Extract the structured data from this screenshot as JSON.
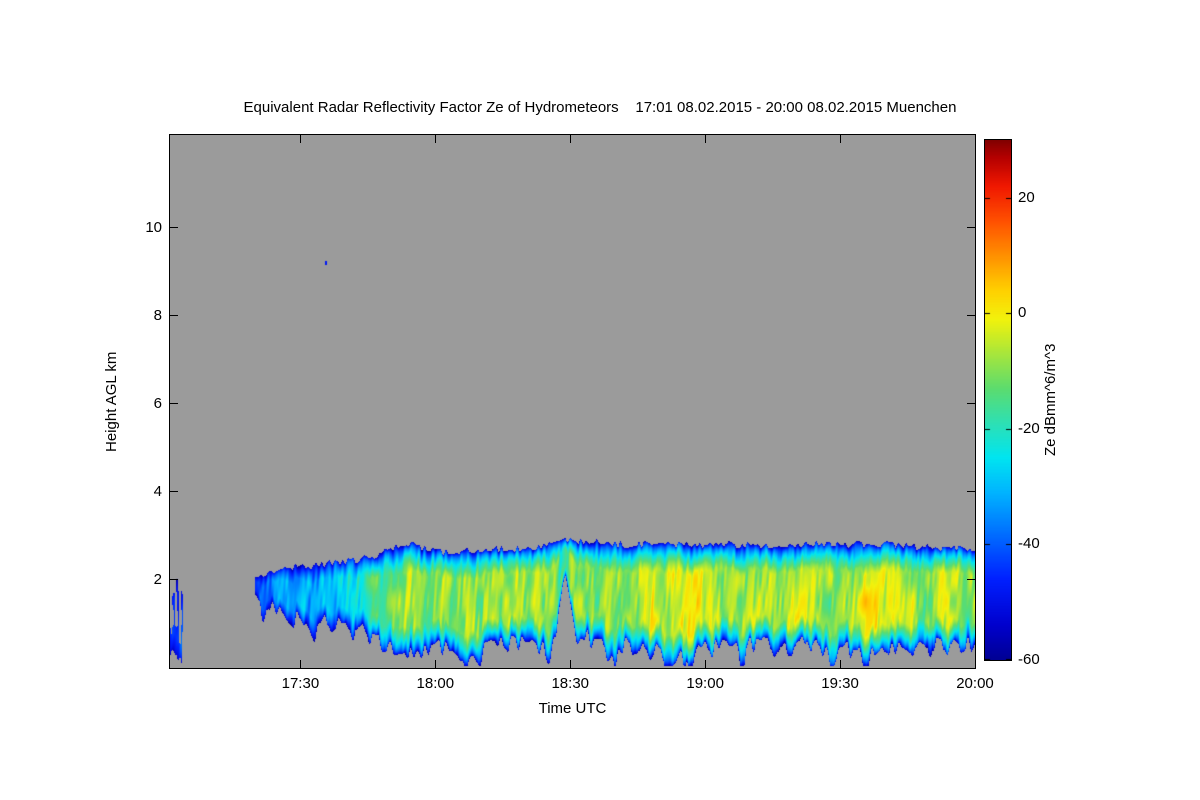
{
  "chart_data": {
    "type": "heatmap",
    "title": "Equivalent Radar Reflectivity Factor Ze of Hydrometeors    17:01 08.02.2015 - 20:00 08.02.2015 Muenchen",
    "xlabel": "Time UTC",
    "ylabel": "Height AGL km",
    "station": "Muenchen",
    "time_start": "17:01 08.02.2015",
    "time_end": "20:00 08.02.2015",
    "x_minutes": [
      1,
      180
    ],
    "ylim_km": [
      0,
      12.1
    ],
    "grid": false,
    "no_signal_color": "#9B9B9B",
    "xticks": [
      {
        "minute": 30,
        "label": "17:30"
      },
      {
        "minute": 60,
        "label": "18:00"
      },
      {
        "minute": 90,
        "label": "18:30"
      },
      {
        "minute": 120,
        "label": "19:00"
      },
      {
        "minute": 150,
        "label": "19:30"
      },
      {
        "minute": 180,
        "label": "20:00"
      }
    ],
    "yticks": [
      2,
      4,
      6,
      8,
      10
    ],
    "colorbar": {
      "label": "Ze dBmm^6/m^3",
      "units": "dBmm^6/m^3",
      "range": [
        -60,
        30
      ],
      "ticks": [
        -60,
        -40,
        -20,
        0,
        20
      ]
    },
    "colormap": [
      [
        -62,
        "#000080"
      ],
      [
        -54,
        "#0000CD"
      ],
      [
        -46,
        "#0020FF"
      ],
      [
        -38,
        "#0070FF"
      ],
      [
        -31,
        "#00B4FF"
      ],
      [
        -25,
        "#00E5F0"
      ],
      [
        -19,
        "#2EE0B4"
      ],
      [
        -13,
        "#5CDC6E"
      ],
      [
        -7,
        "#A8E63C"
      ],
      [
        -1,
        "#F2F20C"
      ],
      [
        4,
        "#FFD000"
      ],
      [
        10,
        "#FF9000"
      ],
      [
        16,
        "#FF5000"
      ],
      [
        22,
        "#F01800"
      ],
      [
        27,
        "#B40000"
      ],
      [
        30,
        "#800000"
      ]
    ],
    "cloud_segments": [
      {
        "name": "left-edge-scraps",
        "sparse": true,
        "keyframes": [
          [
            1,
            0.3,
            2.1,
            -42
          ],
          [
            4,
            0.3,
            1.9,
            -46
          ]
        ]
      },
      {
        "name": "main-precipitating-layer",
        "sparse": false,
        "keyframes": [
          [
            20,
            1.5,
            2.05,
            -44
          ],
          [
            23,
            1.35,
            2.2,
            -38
          ],
          [
            27,
            1.15,
            2.3,
            -33
          ],
          [
            31,
            1.05,
            2.3,
            -31
          ],
          [
            35,
            1.0,
            2.35,
            -29
          ],
          [
            39,
            0.95,
            2.4,
            -27
          ],
          [
            43,
            0.85,
            2.45,
            -23
          ],
          [
            47,
            0.65,
            2.55,
            -16
          ],
          [
            51,
            0.45,
            2.75,
            -10
          ],
          [
            55,
            0.4,
            2.8,
            -6
          ],
          [
            59,
            0.4,
            2.7,
            -8
          ],
          [
            63,
            0.5,
            2.6,
            -10
          ],
          [
            67,
            0.45,
            2.65,
            -7
          ],
          [
            71,
            0.5,
            2.7,
            -9
          ],
          [
            75,
            0.5,
            2.7,
            -5
          ],
          [
            79,
            0.55,
            2.7,
            -7
          ],
          [
            83,
            0.5,
            2.75,
            -8
          ],
          [
            86,
            0.6,
            2.8,
            -9
          ],
          [
            89,
            2.0,
            2.9,
            -16
          ],
          [
            91,
            0.85,
            2.9,
            -11
          ],
          [
            95,
            0.6,
            2.85,
            -8
          ],
          [
            99,
            0.5,
            2.8,
            -10
          ],
          [
            103,
            0.5,
            2.8,
            -7
          ],
          [
            107,
            0.4,
            2.8,
            -5
          ],
          [
            111,
            0.3,
            2.8,
            -3
          ],
          [
            116,
            0.15,
            2.8,
            0
          ],
          [
            120,
            0.4,
            2.8,
            -4
          ],
          [
            124,
            0.5,
            2.8,
            -8
          ],
          [
            128,
            0.5,
            2.8,
            -10
          ],
          [
            132,
            0.5,
            2.8,
            -7
          ],
          [
            136,
            0.45,
            2.8,
            -8
          ],
          [
            140,
            0.5,
            2.8,
            -3
          ],
          [
            144,
            0.5,
            2.8,
            -6
          ],
          [
            148,
            0.45,
            2.8,
            -9
          ],
          [
            152,
            0.4,
            2.8,
            -6
          ],
          [
            156,
            0.4,
            2.8,
            -3
          ],
          [
            160,
            0.5,
            2.8,
            -5
          ],
          [
            164,
            0.5,
            2.8,
            -7
          ],
          [
            168,
            0.5,
            2.75,
            -8
          ],
          [
            172,
            0.5,
            2.72,
            -7
          ],
          [
            176,
            0.5,
            2.7,
            -9
          ],
          [
            180,
            0.5,
            2.7,
            -8
          ]
        ]
      }
    ],
    "specks": [
      {
        "t": 35.5,
        "h": 9.25,
        "dbz": -48
      }
    ]
  }
}
